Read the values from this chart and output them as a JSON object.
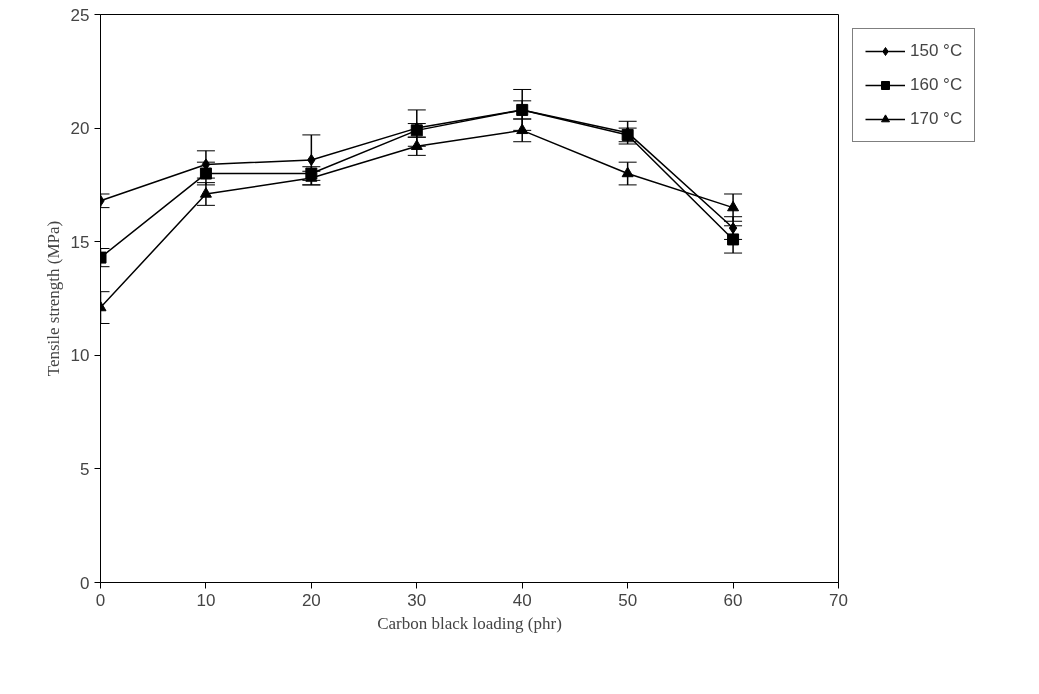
{
  "chart_data": {
    "type": "line",
    "xlabel": "Carbon black loading (phr)",
    "ylabel": "Tensile strength (MPa)",
    "x": [
      0,
      10,
      20,
      30,
      40,
      50,
      60
    ],
    "xlim": [
      0,
      70
    ],
    "xticks": [
      0,
      10,
      20,
      30,
      40,
      50,
      60,
      70
    ],
    "ylim": [
      0,
      25
    ],
    "yticks": [
      0,
      5,
      10,
      15,
      20,
      25
    ],
    "grid": false,
    "legend": "top right",
    "line_style": "solid",
    "series": [
      {
        "name": "150 °C",
        "color": "#000000",
        "marker": "diamond",
        "values": [
          16.8,
          18.4,
          18.6,
          20.0,
          20.8,
          19.8,
          15.6
        ],
        "errors": [
          0.3,
          0.6,
          1.1,
          0.8,
          0.9,
          0.5,
          0.5
        ]
      },
      {
        "name": "160 °C",
        "color": "#000000",
        "marker": "square",
        "values": [
          14.3,
          18.0,
          18.0,
          19.9,
          20.8,
          19.7,
          15.1
        ],
        "errors": [
          0.4,
          0.5,
          0.3,
          0.3,
          0.4,
          0.3,
          0.6
        ]
      },
      {
        "name": "170 °C",
        "color": "#000000",
        "marker": "triangle",
        "values": [
          12.1,
          17.1,
          17.8,
          19.2,
          19.9,
          18.0,
          16.5
        ],
        "errors": [
          0.7,
          0.5,
          0.3,
          0.4,
          0.5,
          0.5,
          0.6
        ]
      }
    ]
  }
}
